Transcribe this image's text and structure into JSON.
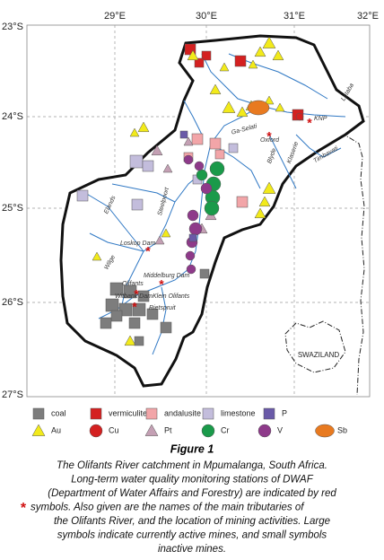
{
  "map": {
    "longitude_labels": [
      "29°E",
      "30°E",
      "31°E",
      "32°E"
    ],
    "latitude_labels": [
      "23°S",
      "24°S",
      "25°S",
      "26°S",
      "27°S"
    ],
    "place_labels": [
      "Letaba",
      "Ga-Selati",
      "KNP",
      "Oxford",
      "Blyde",
      "Klaserie",
      "Timbavati",
      "Elands",
      "Steelpoort",
      "Loskop Dam",
      "Wilge",
      "Middelburg Dam",
      "Olifants",
      "Witbank Dam",
      "Klein Olifants",
      "Rietspruit"
    ],
    "country_label": "SWAZILAND"
  },
  "legend": [
    "coal",
    "vermiculite",
    "andalusite",
    "limestone",
    "P",
    "Au",
    "Cu",
    "Pt",
    "Cr",
    "V",
    "Sb"
  ],
  "caption": {
    "title": "Figure 1",
    "lines": [
      "The Olifants River catchment in Mpumalanga, South Africa.",
      "Long-term water quality monitoring stations of DWAF",
      "(Department of Water Affairs and Forestry) are indicated by red",
      "symbols. Also given are the names of the main tributaries of",
      "the Olifants River, and the location of mining activities. Large",
      "symbols indicate currently active mines, and small symbols",
      "inactive mines."
    ]
  }
}
